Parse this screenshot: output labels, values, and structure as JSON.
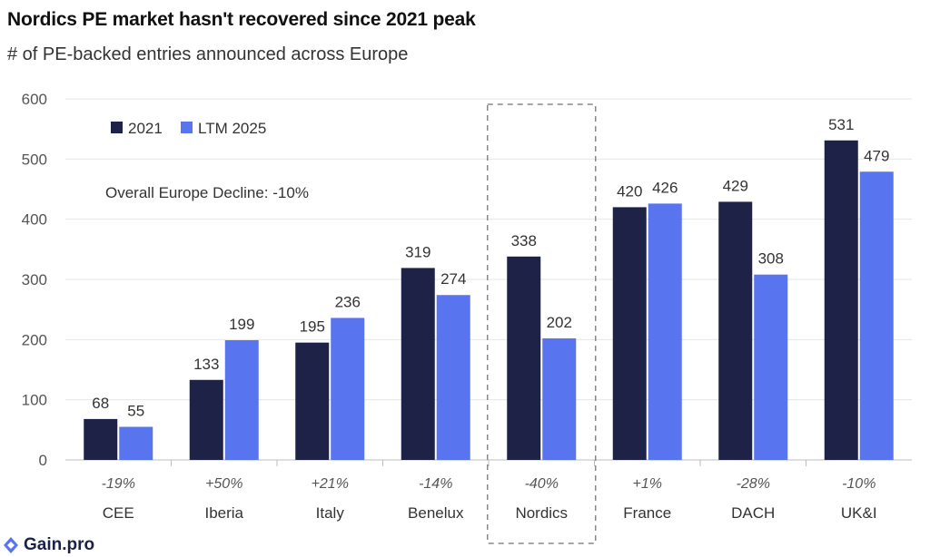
{
  "header": {
    "title": "Nordics PE market hasn't recovered since 2021 peak",
    "subtitle": "# of PE-backed entries announced across Europe"
  },
  "brand": {
    "name": "Gain.pro"
  },
  "colors": {
    "series_2021": "#1f2247",
    "series_ltm": "#5874ee",
    "highlight_border": "#888888"
  },
  "chart_data": {
    "type": "bar",
    "categories": [
      "CEE",
      "Iberia",
      "Italy",
      "Benelux",
      "Nordics",
      "France",
      "DACH",
      "UK&I"
    ],
    "series": [
      {
        "name": "2021",
        "values": [
          68,
          133,
          195,
          319,
          338,
          420,
          429,
          531
        ]
      },
      {
        "name": "LTM 2025",
        "values": [
          55,
          199,
          236,
          274,
          202,
          426,
          308,
          479
        ]
      }
    ],
    "changes": [
      "-19%",
      "+50%",
      "+21%",
      "-14%",
      "-40%",
      "+1%",
      "-28%",
      "-10%"
    ],
    "yticks": [
      "0",
      "100",
      "200",
      "300",
      "400",
      "500",
      "600"
    ],
    "ylim": [
      0,
      600
    ],
    "annotation": "Overall Europe Decline: -10%",
    "highlight": "Nordics",
    "legend_position": "top-left",
    "grid": true
  }
}
